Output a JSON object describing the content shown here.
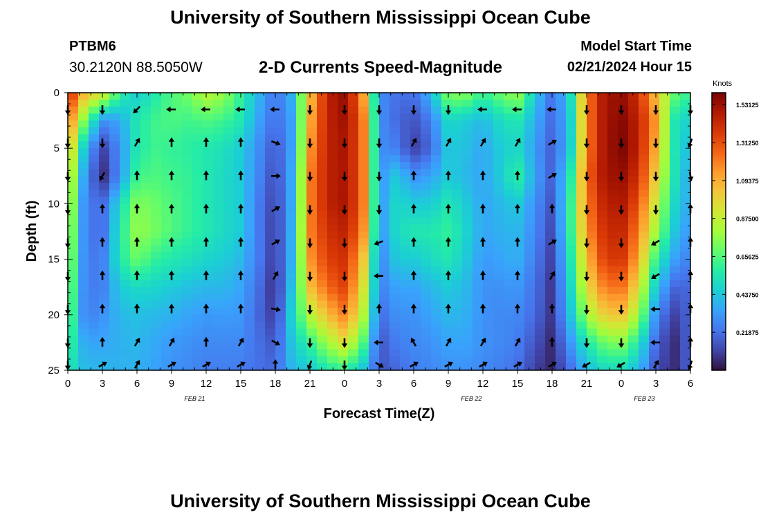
{
  "header": {
    "title": "University of Southern Mississippi Ocean Cube",
    "station_id": "PTBM6",
    "coordinates": "30.2120N  88.5050W",
    "subtitle": "2-D Currents Speed-Magnitude",
    "model_start_label": "Model Start Time",
    "model_start_value": "02/21/2024 Hour 15"
  },
  "footer": {
    "repeat_title": "University of Southern Mississippi Ocean Cube"
  },
  "colors": {
    "palette": [
      "#30123b",
      "#4145ab",
      "#4675ed",
      "#39a2fc",
      "#1bcfd4",
      "#24eca6",
      "#61fc6c",
      "#a4fc3b",
      "#d1e834",
      "#f3c63a",
      "#fe9b2d",
      "#f36315",
      "#d93806",
      "#b11901",
      "#7a0402"
    ],
    "arrow": "#000000"
  },
  "chart_data": {
    "type": "heatmap",
    "title": "2-D Currents Speed-Magnitude",
    "xlabel": "Forecast Time(Z)",
    "ylabel": "Depth (ft)",
    "x_ticks": [
      {
        "t": 0,
        "label": "0"
      },
      {
        "t": 3,
        "label": "3"
      },
      {
        "t": 6,
        "label": "6"
      },
      {
        "t": 9,
        "label": "9"
      },
      {
        "t": 12,
        "label": "12"
      },
      {
        "t": 15,
        "label": "15"
      },
      {
        "t": 18,
        "label": "18"
      },
      {
        "t": 21,
        "label": "21"
      },
      {
        "t": 24,
        "label": "0"
      },
      {
        "t": 27,
        "label": "3"
      },
      {
        "t": 30,
        "label": "6"
      },
      {
        "t": 33,
        "label": "9"
      },
      {
        "t": 36,
        "label": "12"
      },
      {
        "t": 39,
        "label": "15"
      },
      {
        "t": 42,
        "label": "18"
      },
      {
        "t": 45,
        "label": "21"
      },
      {
        "t": 48,
        "label": "0"
      },
      {
        "t": 51,
        "label": "3"
      },
      {
        "t": 54,
        "label": "6"
      }
    ],
    "date_labels": [
      {
        "t": 11,
        "label": "FEB 21"
      },
      {
        "t": 35,
        "label": "FEB 22"
      },
      {
        "t": 50,
        "label": "FEB 23"
      }
    ],
    "xlim": [
      0,
      54
    ],
    "ylim": [
      0,
      25
    ],
    "y_ticks": [
      {
        "d": 0,
        "label": "0"
      },
      {
        "d": 5,
        "label": "5"
      },
      {
        "d": 10,
        "label": "10"
      },
      {
        "d": 15,
        "label": "15"
      },
      {
        "d": 20,
        "label": "20"
      },
      {
        "d": 25,
        "label": "25"
      }
    ],
    "colorbar": {
      "title": "Knots",
      "min": 0,
      "max": 1.6,
      "ticks": [
        {
          "v": 1.53125,
          "label": "1.53125"
        },
        {
          "v": 1.3125,
          "label": "1.31250"
        },
        {
          "v": 1.09375,
          "label": "1.09375"
        },
        {
          "v": 0.875,
          "label": "0.87500"
        },
        {
          "v": 0.65625,
          "label": "0.65625"
        },
        {
          "v": 0.4375,
          "label": "0.43750"
        },
        {
          "v": 0.21875,
          "label": "0.21875"
        }
      ]
    },
    "speed_grid": {
      "times": [
        0,
        1.5,
        3,
        4.5,
        6,
        7.5,
        9,
        10.5,
        12,
        13.5,
        15,
        16.5,
        18,
        19.5,
        21,
        22.5,
        24,
        25.5,
        27,
        28.5,
        30,
        31.5,
        33,
        34.5,
        36,
        37.5,
        39,
        40.5,
        42,
        43.5,
        45,
        46.5,
        48,
        49.5,
        51,
        52.5,
        54
      ],
      "depths": [
        0,
        2.5,
        5,
        7.5,
        10,
        12.5,
        15,
        17.5,
        20,
        22.5,
        25
      ],
      "values_knots": [
        [
          1.45,
          1.05,
          0.95,
          0.6,
          0.45,
          0.55,
          0.65,
          0.72,
          0.85,
          0.78,
          0.6,
          0.4,
          0.22,
          0.4,
          1.05,
          1.45,
          1.55,
          1.2,
          0.3,
          0.22,
          0.22,
          0.4,
          0.75,
          0.75,
          0.6,
          0.7,
          0.8,
          0.45,
          0.22,
          0.45,
          1.2,
          1.5,
          1.55,
          1.4,
          1.05,
          0.7,
          0.6
        ],
        [
          1.25,
          0.7,
          0.3,
          0.35,
          0.55,
          0.62,
          0.65,
          0.62,
          0.65,
          0.62,
          0.55,
          0.35,
          0.2,
          0.35,
          1.1,
          1.45,
          1.52,
          1.3,
          0.3,
          0.2,
          0.15,
          0.25,
          0.5,
          0.45,
          0.4,
          0.5,
          0.55,
          0.38,
          0.2,
          0.4,
          1.2,
          1.5,
          1.58,
          1.45,
          1.15,
          0.55,
          0.45
        ],
        [
          1.1,
          0.4,
          0.1,
          0.3,
          0.55,
          0.62,
          0.6,
          0.58,
          0.55,
          0.52,
          0.45,
          0.3,
          0.15,
          0.35,
          1.15,
          1.45,
          1.5,
          1.3,
          0.3,
          0.25,
          0.1,
          0.2,
          0.45,
          0.42,
          0.35,
          0.45,
          0.5,
          0.33,
          0.18,
          0.4,
          1.2,
          1.5,
          1.6,
          1.45,
          1.1,
          0.55,
          0.4
        ],
        [
          1.0,
          0.3,
          0.05,
          0.3,
          0.62,
          0.65,
          0.62,
          0.6,
          0.55,
          0.5,
          0.45,
          0.28,
          0.12,
          0.38,
          1.2,
          1.45,
          1.5,
          1.3,
          0.3,
          0.45,
          0.3,
          0.35,
          0.45,
          0.4,
          0.35,
          0.45,
          0.6,
          0.35,
          0.18,
          0.5,
          1.25,
          1.5,
          1.55,
          1.4,
          1.0,
          0.55,
          0.35
        ],
        [
          0.95,
          0.25,
          0.2,
          0.5,
          0.75,
          0.7,
          0.65,
          0.6,
          0.55,
          0.5,
          0.45,
          0.25,
          0.1,
          0.38,
          1.2,
          1.45,
          1.5,
          1.3,
          0.3,
          0.5,
          0.45,
          0.45,
          0.55,
          0.45,
          0.35,
          0.4,
          0.45,
          0.3,
          0.15,
          0.55,
          1.2,
          1.45,
          1.5,
          1.3,
          0.9,
          0.5,
          0.35
        ],
        [
          0.9,
          0.25,
          0.2,
          0.55,
          0.78,
          0.72,
          0.65,
          0.6,
          0.55,
          0.5,
          0.45,
          0.25,
          0.08,
          0.4,
          1.2,
          1.4,
          1.45,
          1.25,
          0.3,
          0.5,
          0.55,
          0.55,
          0.6,
          0.48,
          0.35,
          0.38,
          0.4,
          0.28,
          0.12,
          0.55,
          1.15,
          1.4,
          1.45,
          1.2,
          0.8,
          0.45,
          0.3
        ],
        [
          0.85,
          0.25,
          0.25,
          0.55,
          0.7,
          0.6,
          0.55,
          0.52,
          0.48,
          0.45,
          0.4,
          0.25,
          0.08,
          0.4,
          1.15,
          1.35,
          1.4,
          1.1,
          0.25,
          0.45,
          0.45,
          0.5,
          0.55,
          0.45,
          0.32,
          0.35,
          0.38,
          0.25,
          0.1,
          0.5,
          1.05,
          1.35,
          1.4,
          1.1,
          0.6,
          0.35,
          0.25
        ],
        [
          0.8,
          0.25,
          0.25,
          0.45,
          0.5,
          0.48,
          0.45,
          0.42,
          0.4,
          0.4,
          0.35,
          0.22,
          0.05,
          0.45,
          1.05,
          1.25,
          1.35,
          1.0,
          0.25,
          0.35,
          0.35,
          0.4,
          0.45,
          0.4,
          0.3,
          0.3,
          0.32,
          0.22,
          0.08,
          0.45,
          0.95,
          1.2,
          1.25,
          0.95,
          0.45,
          0.2,
          0.2
        ],
        [
          0.75,
          0.25,
          0.3,
          0.4,
          0.42,
          0.4,
          0.38,
          0.35,
          0.32,
          0.33,
          0.32,
          0.2,
          0.08,
          0.5,
          0.85,
          1.05,
          1.2,
          0.9,
          0.2,
          0.3,
          0.3,
          0.35,
          0.4,
          0.38,
          0.3,
          0.28,
          0.28,
          0.2,
          0.08,
          0.4,
          0.8,
          1.0,
          1.05,
          0.8,
          0.3,
          0.1,
          0.2
        ],
        [
          0.65,
          0.35,
          0.35,
          0.38,
          0.4,
          0.36,
          0.32,
          0.3,
          0.28,
          0.28,
          0.28,
          0.22,
          0.15,
          0.45,
          0.6,
          0.8,
          0.95,
          0.7,
          0.15,
          0.25,
          0.28,
          0.3,
          0.35,
          0.35,
          0.3,
          0.28,
          0.25,
          0.15,
          0.05,
          0.3,
          0.55,
          0.7,
          0.75,
          0.55,
          0.2,
          0.05,
          0.2
        ],
        [
          0.55,
          0.4,
          0.4,
          0.38,
          0.38,
          0.35,
          0.3,
          0.28,
          0.25,
          0.25,
          0.25,
          0.22,
          0.2,
          0.4,
          0.45,
          0.55,
          0.6,
          0.45,
          0.15,
          0.2,
          0.25,
          0.28,
          0.3,
          0.3,
          0.28,
          0.25,
          0.22,
          0.1,
          0.05,
          0.2,
          0.4,
          0.5,
          0.5,
          0.4,
          0.15,
          0.05,
          0.2
        ]
      ]
    },
    "vectors": {
      "times": [
        0,
        3,
        6,
        9,
        12,
        15,
        18,
        21,
        24,
        27,
        30,
        33,
        36,
        39,
        42,
        45,
        48,
        51,
        54
      ],
      "depths": [
        1.5,
        4.5,
        7.5,
        10.5,
        13.5,
        16.5,
        19.5,
        22.5,
        24.5
      ],
      "directions_deg": [
        [
          180,
          180,
          225,
          270,
          270,
          270,
          270,
          180,
          180,
          180,
          180,
          180,
          270,
          270,
          270,
          180,
          180,
          180,
          180
        ],
        [
          180,
          180,
          30,
          0,
          0,
          0,
          110,
          180,
          180,
          180,
          30,
          30,
          30,
          30,
          60,
          180,
          180,
          180,
          200
        ],
        [
          180,
          210,
          0,
          0,
          0,
          0,
          90,
          180,
          180,
          180,
          0,
          0,
          0,
          0,
          60,
          180,
          180,
          180,
          170
        ],
        [
          180,
          0,
          0,
          0,
          0,
          0,
          60,
          180,
          180,
          180,
          0,
          0,
          0,
          0,
          0,
          180,
          180,
          180,
          0
        ],
        [
          180,
          0,
          0,
          0,
          0,
          0,
          60,
          180,
          180,
          250,
          0,
          0,
          0,
          0,
          60,
          180,
          180,
          240,
          0
        ],
        [
          180,
          0,
          0,
          0,
          0,
          0,
          30,
          180,
          180,
          270,
          0,
          0,
          0,
          0,
          30,
          180,
          180,
          240,
          0
        ],
        [
          180,
          0,
          0,
          0,
          0,
          0,
          100,
          180,
          180,
          0,
          0,
          0,
          0,
          0,
          0,
          180,
          180,
          270,
          0
        ],
        [
          180,
          0,
          30,
          30,
          0,
          30,
          120,
          180,
          180,
          270,
          330,
          30,
          30,
          30,
          0,
          180,
          180,
          270,
          0
        ],
        [
          180,
          60,
          30,
          60,
          60,
          60,
          0,
          200,
          180,
          120,
          60,
          60,
          60,
          60,
          60,
          240,
          240,
          30,
          200
        ]
      ]
    }
  }
}
